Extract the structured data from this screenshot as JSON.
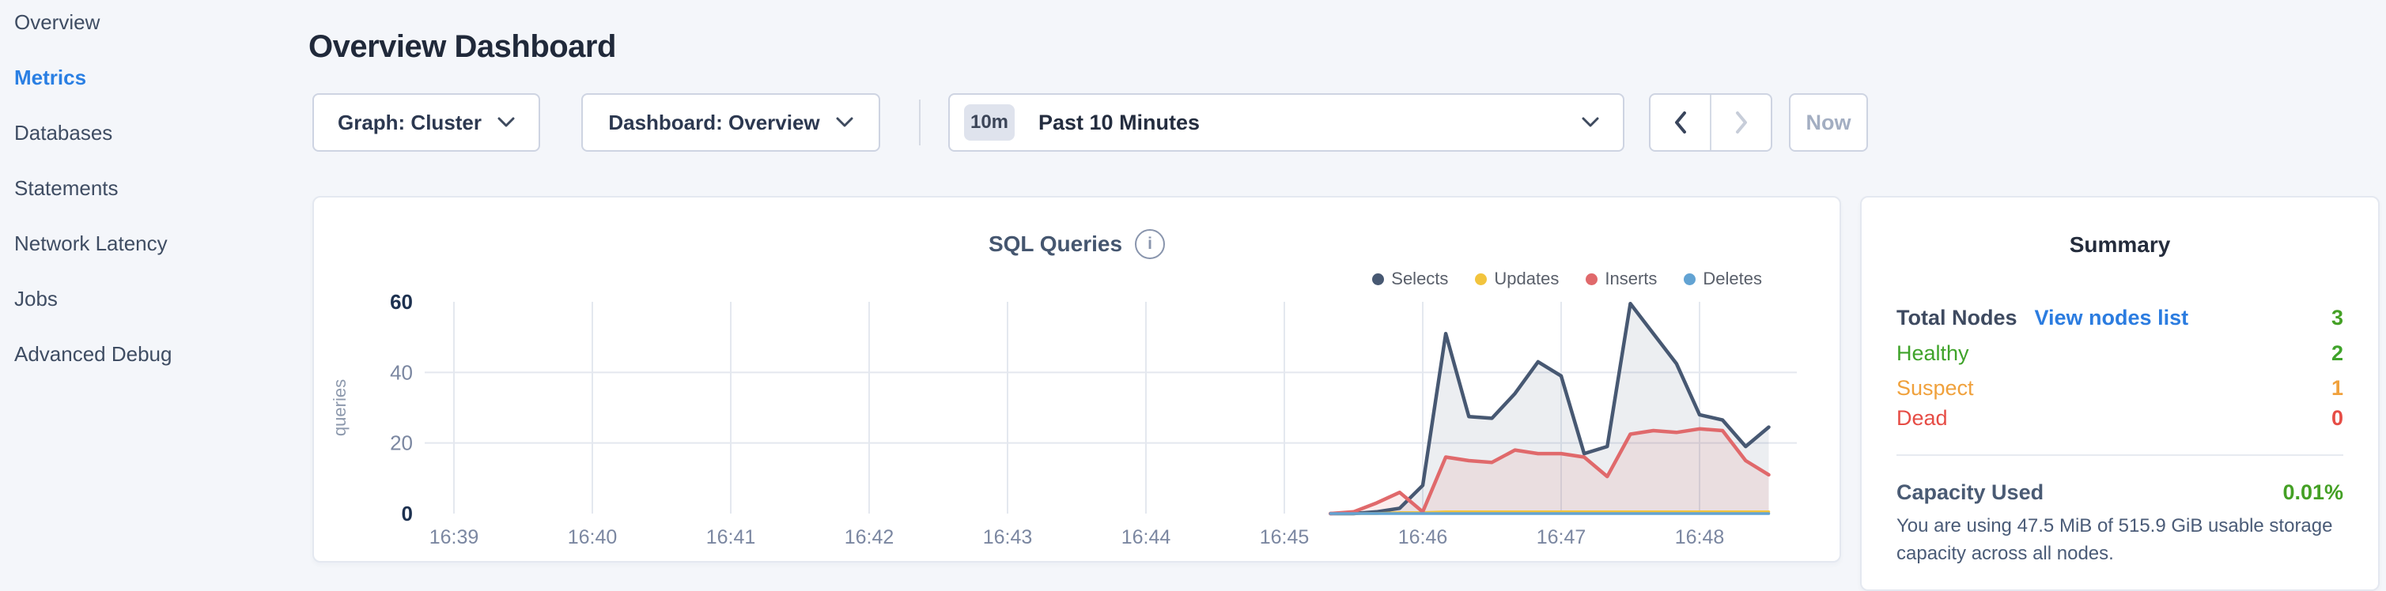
{
  "header": {
    "title": "Overview Dashboard"
  },
  "sidebar": {
    "items": [
      {
        "label": "Overview",
        "active": false
      },
      {
        "label": "Metrics",
        "active": true
      },
      {
        "label": "Databases",
        "active": false
      },
      {
        "label": "Statements",
        "active": false
      },
      {
        "label": "Network Latency",
        "active": false
      },
      {
        "label": "Jobs",
        "active": false
      },
      {
        "label": "Advanced Debug",
        "active": false
      }
    ],
    "active_color": "#2a7fe3"
  },
  "controls": {
    "graph_dropdown_label": "Graph: Cluster",
    "dashboard_dropdown_label": "Dashboard: Overview",
    "time_window_badge": "10m",
    "time_window_label": "Past 10 Minutes",
    "prev_enabled": true,
    "next_enabled": false,
    "now_button_label": "Now"
  },
  "chart_data": {
    "type": "area",
    "title": "SQL Queries",
    "ylabel": "queries",
    "x_ticks": [
      "16:39",
      "16:40",
      "16:41",
      "16:42",
      "16:43",
      "16:44",
      "16:45",
      "16:46",
      "16:47",
      "16:48"
    ],
    "y_ticks": [
      0,
      20,
      40,
      60
    ],
    "ylim": [
      0,
      60
    ],
    "grid": "horizontal lines at 20 and 40, vertical line at each minute tick",
    "legend_position": "top-right",
    "data_start_time": "16:45:20",
    "data_interval_seconds": 10,
    "series": [
      {
        "name": "Selects",
        "color": "#475872",
        "fill": "rgba(71,88,114,0.10)",
        "values": [
          0,
          0,
          0.5,
          1.5,
          8,
          51,
          27.5,
          27,
          34,
          43,
          39,
          17,
          19,
          59.5,
          51,
          42.5,
          28,
          26.5,
          19,
          24.5
        ]
      },
      {
        "name": "Updates",
        "color": "#f2c43d",
        "fill": null,
        "values": [
          0,
          0,
          0,
          0.3,
          0.3,
          0.5,
          0.5,
          0.5,
          0.5,
          0.5,
          0.5,
          0.5,
          0.5,
          0.5,
          0.5,
          0.5,
          0.5,
          0.5,
          0.5,
          0.5
        ]
      },
      {
        "name": "Inserts",
        "color": "#e0696b",
        "fill": "rgba(224,105,107,0.12)",
        "values": [
          0,
          0.5,
          3,
          6,
          0.5,
          16,
          15,
          14.5,
          18,
          17,
          17,
          16,
          10.5,
          22.5,
          23.5,
          23,
          24,
          23.5,
          15,
          11
        ]
      },
      {
        "name": "Deletes",
        "color": "#62a3d3",
        "fill": null,
        "values": [
          0,
          0,
          0,
          0,
          0,
          0,
          0,
          0,
          0,
          0,
          0,
          0,
          0,
          0,
          0,
          0,
          0,
          0,
          0,
          0
        ]
      }
    ]
  },
  "summary": {
    "title": "Summary",
    "node_rows": [
      {
        "label": "Total Nodes",
        "link": "View nodes list",
        "value": "3",
        "label_color": "#3e4a60",
        "value_color": "#44a025",
        "bold": true
      },
      {
        "label": "Healthy",
        "link": null,
        "value": "2",
        "label_color": "#3fa32a",
        "value_color": "#3fa32a",
        "bold": false
      },
      {
        "label": "Suspect",
        "link": null,
        "value": "1",
        "label_color": "#f0a13c",
        "value_color": "#f0a13c",
        "bold": false
      },
      {
        "label": "Dead",
        "link": null,
        "value": "0",
        "label_color": "#e64c45",
        "value_color": "#e64c45",
        "bold": false
      }
    ],
    "capacity": {
      "label": "Capacity Used",
      "value": "0.01%",
      "value_color": "#44a025",
      "description": "You are using 47.5 MiB of 515.9 GiB usable storage capacity across all nodes."
    }
  },
  "colors": {
    "page_bg": "#f4f6fa",
    "link_blue": "#2b7ce0",
    "accent_blue": "#2a7fe3"
  }
}
